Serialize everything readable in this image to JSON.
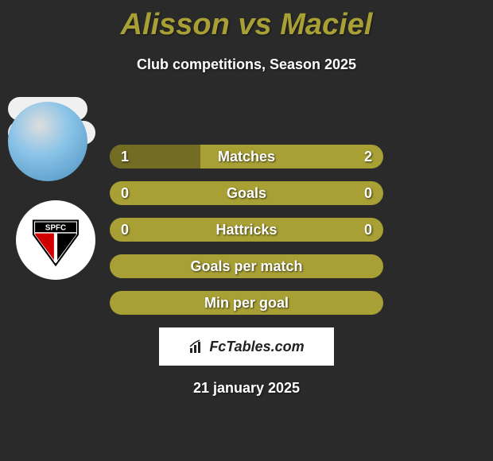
{
  "title": "Alisson vs Maciel",
  "subtitle": "Club competitions, Season 2025",
  "date": "21 january 2025",
  "colors": {
    "background": "#2a2a2a",
    "accent": "#a8a035",
    "bar_light": "#a8a035",
    "bar_dark": "#726c25",
    "text": "#ffffff",
    "title": "#a8a035"
  },
  "rows": [
    {
      "label": "Matches",
      "left": "1",
      "right": "2",
      "left_fill_pct": 33,
      "right_fill_pct": 0
    },
    {
      "label": "Goals",
      "left": "0",
      "right": "0",
      "left_fill_pct": 0,
      "right_fill_pct": 0
    },
    {
      "label": "Hattricks",
      "left": "0",
      "right": "0",
      "left_fill_pct": 0,
      "right_fill_pct": 0
    },
    {
      "label": "Goals per match",
      "left": "",
      "right": "",
      "left_fill_pct": 0,
      "right_fill_pct": 0
    },
    {
      "label": "Min per goal",
      "left": "",
      "right": "",
      "left_fill_pct": 0,
      "right_fill_pct": 0
    }
  ],
  "watermark": "FcTables.com",
  "club_badge_text": "SPFC"
}
